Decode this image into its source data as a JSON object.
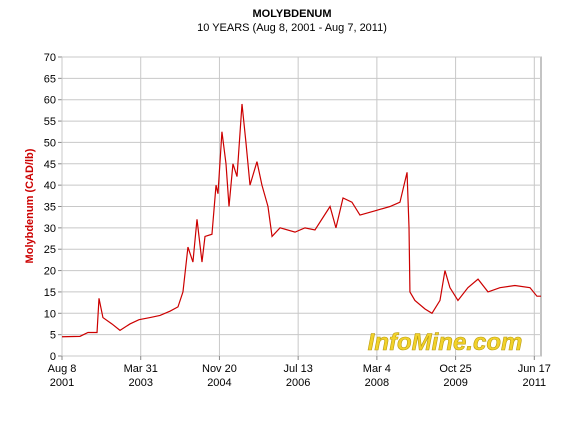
{
  "chart_data": {
    "type": "line",
    "title": "MOLYBDENUM",
    "subtitle": "10 YEARS (Aug 8, 2001 - Aug 7, 2011)",
    "ylabel": "Molybdenum (CAD/lb)",
    "annotation": "InfoMine.com",
    "grid": true,
    "xlim": [
      "2001-08-08",
      "2011-08-07"
    ],
    "ylim": [
      0,
      70
    ],
    "yticks": [
      0,
      5,
      10,
      15,
      20,
      25,
      30,
      35,
      40,
      45,
      50,
      55,
      60,
      65,
      70
    ],
    "xticks": [
      {
        "value": "2001-08-08",
        "label": [
          "Aug 8",
          "2001"
        ]
      },
      {
        "value": "2003-03-31",
        "label": [
          "Mar 31",
          "2003"
        ]
      },
      {
        "value": "2004-11-20",
        "label": [
          "Nov 20",
          "2004"
        ]
      },
      {
        "value": "2006-07-13",
        "label": [
          "Jul 13",
          "2006"
        ]
      },
      {
        "value": "2008-03-04",
        "label": [
          "Mar 4",
          "2008"
        ]
      },
      {
        "value": "2009-10-25",
        "label": [
          "Oct 25",
          "2009"
        ]
      },
      {
        "value": "2011-06-17",
        "label": [
          "Jun 17",
          "2011"
        ]
      }
    ],
    "x": [
      "2001-08-08",
      "2001-12-23",
      "2002-02-22",
      "2002-05-02",
      "2002-05-17",
      "2002-06-16",
      "2002-08-24",
      "2002-10-24",
      "2003-01-08",
      "2003-03-18",
      "2003-06-10",
      "2003-08-25",
      "2003-11-09",
      "2004-01-09",
      "2004-02-16",
      "2004-03-25",
      "2004-05-02",
      "2004-06-02",
      "2004-07-10",
      "2004-08-02",
      "2004-09-24",
      "2004-10-25",
      "2004-11-09",
      "2004-12-09",
      "2005-01-09",
      "2005-02-01",
      "2005-03-03",
      "2005-04-03",
      "2005-05-11",
      "2005-06-10",
      "2005-07-11",
      "2005-09-02",
      "2005-10-10",
      "2005-11-25",
      "2005-12-26",
      "2006-02-25",
      "2006-06-19",
      "2006-09-03",
      "2006-11-18",
      "2007-03-13",
      "2007-04-27",
      "2007-06-20",
      "2007-08-27",
      "2007-10-27",
      "2008-02-19",
      "2008-06-12",
      "2008-08-27",
      "2008-10-20",
      "2008-11-04",
      "2008-11-11",
      "2008-12-19",
      "2009-03-06",
      "2009-04-28",
      "2009-06-28",
      "2009-08-05",
      "2009-09-12",
      "2009-11-12",
      "2010-01-27",
      "2010-04-14",
      "2010-06-29",
      "2010-09-28",
      "2011-01-20",
      "2011-05-15",
      "2011-07-07",
      "2011-08-07"
    ],
    "series": [
      {
        "name": "Molybdenum",
        "color": "#cc0000",
        "values": [
          4.5,
          4.6,
          5.5,
          5.5,
          13.5,
          9,
          7.5,
          6,
          7.5,
          8.5,
          9,
          9.5,
          10.5,
          11.5,
          15,
          25.5,
          22,
          32,
          22,
          28,
          28.5,
          40,
          38,
          52.5,
          45,
          35,
          45,
          42,
          59,
          50,
          40,
          45.5,
          40,
          35,
          28,
          30,
          29,
          30,
          29.5,
          35,
          30,
          37,
          36,
          33,
          34,
          35,
          36,
          43,
          30,
          15,
          13,
          11,
          10,
          13,
          20,
          16,
          13,
          16,
          18,
          15,
          16,
          16.5,
          16,
          14,
          14
        ]
      }
    ]
  }
}
